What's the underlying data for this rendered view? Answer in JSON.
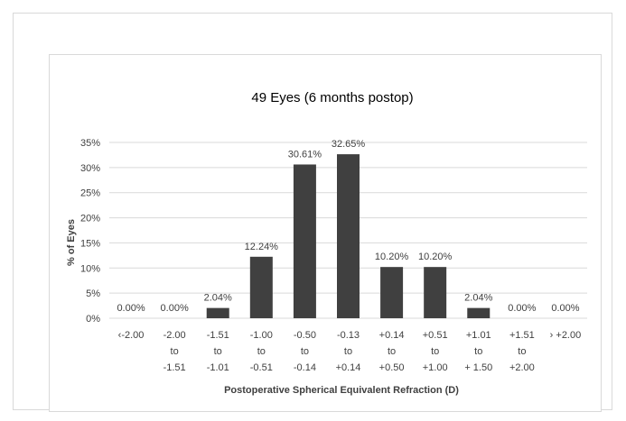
{
  "chart_data": {
    "type": "bar",
    "title": "49 Eyes (6 months postop)",
    "xlabel": "Postoperative Spherical Equivalent Refraction (D)",
    "ylabel": "% of Eyes",
    "ylim": [
      0,
      35
    ],
    "yticks": [
      "0%",
      "5%",
      "10%",
      "15%",
      "20%",
      "25%",
      "30%",
      "35%"
    ],
    "grid": true,
    "categories": [
      [
        "‹-2.00"
      ],
      [
        "-2.00",
        "to",
        "-1.51"
      ],
      [
        "-1.51",
        "to",
        "-1.01"
      ],
      [
        "-1.00",
        "to",
        "-0.51"
      ],
      [
        "-0.50",
        "to",
        "-0.14"
      ],
      [
        "-0.13",
        "to",
        "+0.14"
      ],
      [
        "+0.14",
        "to",
        "+0.50"
      ],
      [
        "+0.51",
        "to",
        "+1.00"
      ],
      [
        "+1.01",
        "to",
        "+ 1.50"
      ],
      [
        "+1.51",
        "to",
        "+2.00"
      ],
      [
        "› +2.00"
      ]
    ],
    "values": [
      0,
      0,
      2.04,
      12.24,
      30.61,
      32.65,
      10.2,
      10.2,
      2.04,
      0,
      0
    ],
    "data_labels": [
      "0.00%",
      "0.00%",
      "2.04%",
      "12.24%",
      "30.61%",
      "32.65%",
      "10.20%",
      "10.20%",
      "2.04%",
      "0.00%",
      "0.00%"
    ],
    "colors": {
      "bar": "#404040",
      "grid": "#d9d9d9",
      "text": "#404040"
    }
  }
}
